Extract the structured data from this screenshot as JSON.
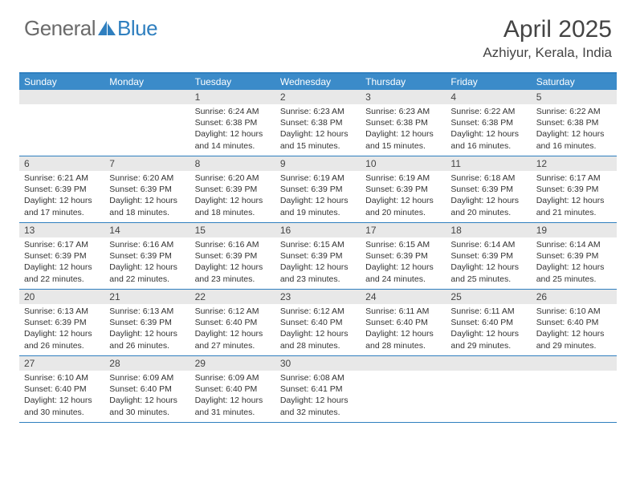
{
  "logo": {
    "general": "General",
    "blue": "Blue"
  },
  "header": {
    "month": "April 2025",
    "location": "Azhiyur, Kerala, India"
  },
  "colors": {
    "accent": "#3b8bc9",
    "border": "#2f7fbf",
    "daybar": "#e8e8e8",
    "text": "#444444",
    "logo_gray": "#6b6b6b"
  },
  "weekdays": [
    "Sunday",
    "Monday",
    "Tuesday",
    "Wednesday",
    "Thursday",
    "Friday",
    "Saturday"
  ],
  "weeks": [
    [
      null,
      null,
      {
        "n": "1",
        "sr": "Sunrise: 6:24 AM",
        "ss": "Sunset: 6:38 PM",
        "d1": "Daylight: 12 hours",
        "d2": "and 14 minutes."
      },
      {
        "n": "2",
        "sr": "Sunrise: 6:23 AM",
        "ss": "Sunset: 6:38 PM",
        "d1": "Daylight: 12 hours",
        "d2": "and 15 minutes."
      },
      {
        "n": "3",
        "sr": "Sunrise: 6:23 AM",
        "ss": "Sunset: 6:38 PM",
        "d1": "Daylight: 12 hours",
        "d2": "and 15 minutes."
      },
      {
        "n": "4",
        "sr": "Sunrise: 6:22 AM",
        "ss": "Sunset: 6:38 PM",
        "d1": "Daylight: 12 hours",
        "d2": "and 16 minutes."
      },
      {
        "n": "5",
        "sr": "Sunrise: 6:22 AM",
        "ss": "Sunset: 6:38 PM",
        "d1": "Daylight: 12 hours",
        "d2": "and 16 minutes."
      }
    ],
    [
      {
        "n": "6",
        "sr": "Sunrise: 6:21 AM",
        "ss": "Sunset: 6:39 PM",
        "d1": "Daylight: 12 hours",
        "d2": "and 17 minutes."
      },
      {
        "n": "7",
        "sr": "Sunrise: 6:20 AM",
        "ss": "Sunset: 6:39 PM",
        "d1": "Daylight: 12 hours",
        "d2": "and 18 minutes."
      },
      {
        "n": "8",
        "sr": "Sunrise: 6:20 AM",
        "ss": "Sunset: 6:39 PM",
        "d1": "Daylight: 12 hours",
        "d2": "and 18 minutes."
      },
      {
        "n": "9",
        "sr": "Sunrise: 6:19 AM",
        "ss": "Sunset: 6:39 PM",
        "d1": "Daylight: 12 hours",
        "d2": "and 19 minutes."
      },
      {
        "n": "10",
        "sr": "Sunrise: 6:19 AM",
        "ss": "Sunset: 6:39 PM",
        "d1": "Daylight: 12 hours",
        "d2": "and 20 minutes."
      },
      {
        "n": "11",
        "sr": "Sunrise: 6:18 AM",
        "ss": "Sunset: 6:39 PM",
        "d1": "Daylight: 12 hours",
        "d2": "and 20 minutes."
      },
      {
        "n": "12",
        "sr": "Sunrise: 6:17 AM",
        "ss": "Sunset: 6:39 PM",
        "d1": "Daylight: 12 hours",
        "d2": "and 21 minutes."
      }
    ],
    [
      {
        "n": "13",
        "sr": "Sunrise: 6:17 AM",
        "ss": "Sunset: 6:39 PM",
        "d1": "Daylight: 12 hours",
        "d2": "and 22 minutes."
      },
      {
        "n": "14",
        "sr": "Sunrise: 6:16 AM",
        "ss": "Sunset: 6:39 PM",
        "d1": "Daylight: 12 hours",
        "d2": "and 22 minutes."
      },
      {
        "n": "15",
        "sr": "Sunrise: 6:16 AM",
        "ss": "Sunset: 6:39 PM",
        "d1": "Daylight: 12 hours",
        "d2": "and 23 minutes."
      },
      {
        "n": "16",
        "sr": "Sunrise: 6:15 AM",
        "ss": "Sunset: 6:39 PM",
        "d1": "Daylight: 12 hours",
        "d2": "and 23 minutes."
      },
      {
        "n": "17",
        "sr": "Sunrise: 6:15 AM",
        "ss": "Sunset: 6:39 PM",
        "d1": "Daylight: 12 hours",
        "d2": "and 24 minutes."
      },
      {
        "n": "18",
        "sr": "Sunrise: 6:14 AM",
        "ss": "Sunset: 6:39 PM",
        "d1": "Daylight: 12 hours",
        "d2": "and 25 minutes."
      },
      {
        "n": "19",
        "sr": "Sunrise: 6:14 AM",
        "ss": "Sunset: 6:39 PM",
        "d1": "Daylight: 12 hours",
        "d2": "and 25 minutes."
      }
    ],
    [
      {
        "n": "20",
        "sr": "Sunrise: 6:13 AM",
        "ss": "Sunset: 6:39 PM",
        "d1": "Daylight: 12 hours",
        "d2": "and 26 minutes."
      },
      {
        "n": "21",
        "sr": "Sunrise: 6:13 AM",
        "ss": "Sunset: 6:39 PM",
        "d1": "Daylight: 12 hours",
        "d2": "and 26 minutes."
      },
      {
        "n": "22",
        "sr": "Sunrise: 6:12 AM",
        "ss": "Sunset: 6:40 PM",
        "d1": "Daylight: 12 hours",
        "d2": "and 27 minutes."
      },
      {
        "n": "23",
        "sr": "Sunrise: 6:12 AM",
        "ss": "Sunset: 6:40 PM",
        "d1": "Daylight: 12 hours",
        "d2": "and 28 minutes."
      },
      {
        "n": "24",
        "sr": "Sunrise: 6:11 AM",
        "ss": "Sunset: 6:40 PM",
        "d1": "Daylight: 12 hours",
        "d2": "and 28 minutes."
      },
      {
        "n": "25",
        "sr": "Sunrise: 6:11 AM",
        "ss": "Sunset: 6:40 PM",
        "d1": "Daylight: 12 hours",
        "d2": "and 29 minutes."
      },
      {
        "n": "26",
        "sr": "Sunrise: 6:10 AM",
        "ss": "Sunset: 6:40 PM",
        "d1": "Daylight: 12 hours",
        "d2": "and 29 minutes."
      }
    ],
    [
      {
        "n": "27",
        "sr": "Sunrise: 6:10 AM",
        "ss": "Sunset: 6:40 PM",
        "d1": "Daylight: 12 hours",
        "d2": "and 30 minutes."
      },
      {
        "n": "28",
        "sr": "Sunrise: 6:09 AM",
        "ss": "Sunset: 6:40 PM",
        "d1": "Daylight: 12 hours",
        "d2": "and 30 minutes."
      },
      {
        "n": "29",
        "sr": "Sunrise: 6:09 AM",
        "ss": "Sunset: 6:40 PM",
        "d1": "Daylight: 12 hours",
        "d2": "and 31 minutes."
      },
      {
        "n": "30",
        "sr": "Sunrise: 6:08 AM",
        "ss": "Sunset: 6:41 PM",
        "d1": "Daylight: 12 hours",
        "d2": "and 32 minutes."
      },
      null,
      null,
      null
    ]
  ]
}
